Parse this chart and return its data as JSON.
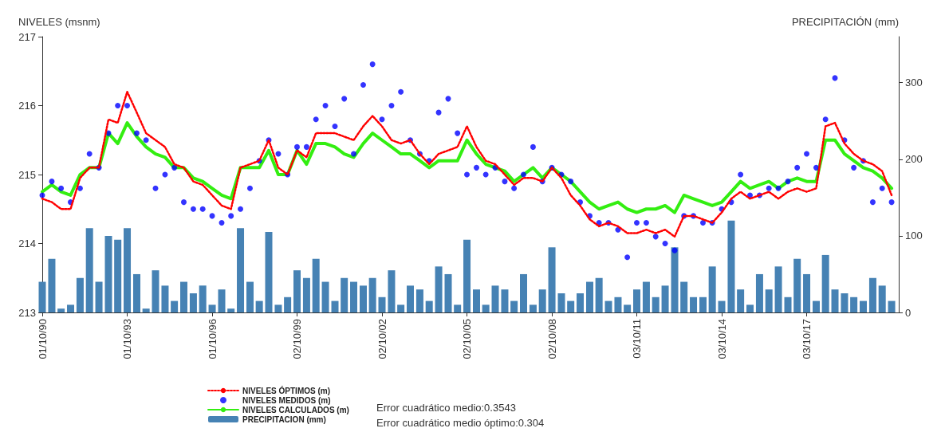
{
  "chart_data": {
    "type": "line",
    "ylabel": "NIVELES (msnm)",
    "y2label": "PRECIPITACIÓN (mm)",
    "x": [
      "1990-10",
      "1991-02",
      "1991-06",
      "1991-10",
      "1992-02",
      "1992-06",
      "1992-10",
      "1993-02",
      "1993-06",
      "1993-10",
      "1994-02",
      "1994-06",
      "1994-10",
      "1995-02",
      "1995-06",
      "1995-10",
      "1996-02",
      "1996-06",
      "1996-10",
      "1997-02",
      "1997-06",
      "1997-10",
      "1998-02",
      "1998-06",
      "1998-10",
      "1999-02",
      "1999-06",
      "1999-10",
      "2000-02",
      "2000-06",
      "2000-10",
      "2001-02",
      "2001-06",
      "2001-10",
      "2002-02",
      "2002-06",
      "2002-10",
      "2003-02",
      "2003-06",
      "2003-10",
      "2004-02",
      "2004-06",
      "2004-10",
      "2005-02",
      "2005-06",
      "2005-10",
      "2006-02",
      "2006-06",
      "2006-10",
      "2007-02",
      "2007-06",
      "2007-10",
      "2008-02",
      "2008-06",
      "2008-10",
      "2009-02",
      "2009-06",
      "2009-10",
      "2010-02",
      "2010-06",
      "2010-10",
      "2011-02",
      "2011-06",
      "2011-10",
      "2012-02",
      "2012-06",
      "2012-10",
      "2013-02",
      "2013-06",
      "2013-10",
      "2014-02",
      "2014-06",
      "2014-10",
      "2015-02",
      "2015-06",
      "2015-10",
      "2016-02",
      "2016-06",
      "2016-10",
      "2017-02",
      "2017-06",
      "2017-10",
      "2018-02",
      "2018-06",
      "2018-10",
      "2019-02",
      "2019-06",
      "2019-10",
      "2020-02",
      "2020-06",
      "2020-10"
    ],
    "xlim": [
      "1990-10-01",
      "2021-01-01"
    ],
    "xticks": [
      {
        "value": "1990-10-01",
        "label": "01/10/90"
      },
      {
        "value": "1993-10-01",
        "label": "01/10/93"
      },
      {
        "value": "1996-10-01",
        "label": "01/10/96"
      },
      {
        "value": "1999-10-02",
        "label": "02/10/99"
      },
      {
        "value": "2002-10-02",
        "label": "02/10/02"
      },
      {
        "value": "2005-10-02",
        "label": "02/10/05"
      },
      {
        "value": "2008-10-02",
        "label": "02/10/08"
      },
      {
        "value": "2011-10-03",
        "label": "03/10/11"
      },
      {
        "value": "2014-10-03",
        "label": "03/10/14"
      },
      {
        "value": "2017-10-03",
        "label": "03/10/17"
      }
    ],
    "ylim": [
      213,
      217
    ],
    "yticks": [
      213,
      214,
      215,
      216,
      217
    ],
    "y2lim": [
      0,
      360
    ],
    "y2ticks": [
      0,
      100,
      200,
      300
    ],
    "legend": "bottom",
    "grid": false,
    "annotations": [
      "Error cuadrático medio:0.3543",
      "Error cuadrático medio óptimo:0.304"
    ],
    "series": [
      {
        "name": "NIVELES ÓPTIMOS (m)",
        "color": "#ff0000",
        "line_style": "dotted",
        "marker": "none",
        "values": [
          214.65,
          214.6,
          214.5,
          214.5,
          214.95,
          215.1,
          215.1,
          215.8,
          215.75,
          216.2,
          215.9,
          215.6,
          215.5,
          215.4,
          215.15,
          215.1,
          214.9,
          214.85,
          214.7,
          214.55,
          214.5,
          215.1,
          215.15,
          215.2,
          215.5,
          215.1,
          215.0,
          215.35,
          215.25,
          215.6,
          215.6,
          215.6,
          215.55,
          215.5,
          215.7,
          215.85,
          215.7,
          215.5,
          215.45,
          215.5,
          215.3,
          215.15,
          215.3,
          215.35,
          215.4,
          215.7,
          215.4,
          215.2,
          215.15,
          215.0,
          214.85,
          214.95,
          214.95,
          214.9,
          215.1,
          214.95,
          214.7,
          214.55,
          214.35,
          214.25,
          214.3,
          214.25,
          214.15,
          214.15,
          214.2,
          214.15,
          214.2,
          214.1,
          214.4,
          214.4,
          214.35,
          214.3,
          214.45,
          214.65,
          214.75,
          214.65,
          214.7,
          214.75,
          214.65,
          214.75,
          214.8,
          214.75,
          214.8,
          215.7,
          215.75,
          215.45,
          215.3,
          215.2,
          215.15,
          215.05,
          214.7
        ]
      },
      {
        "name": "NIVELES MEDIDOS (m)",
        "type": "scatter",
        "color": "#0000ff",
        "marker": "circle",
        "values": [
          214.7,
          214.9,
          214.8,
          214.6,
          214.8,
          215.3,
          215.1,
          215.6,
          216.0,
          216.0,
          215.6,
          215.5,
          214.8,
          215.0,
          215.1,
          214.6,
          214.5,
          214.5,
          214.4,
          214.3,
          214.4,
          214.5,
          214.8,
          215.2,
          215.5,
          215.3,
          215.0,
          215.4,
          215.4,
          215.8,
          216.0,
          215.7,
          216.1,
          215.3,
          216.3,
          216.6,
          215.8,
          216.0,
          216.2,
          215.5,
          215.3,
          215.2,
          215.9,
          216.1,
          215.6,
          215.0,
          215.1,
          215.0,
          215.1,
          214.9,
          214.8,
          215.0,
          215.4,
          214.9,
          215.1,
          215.0,
          214.9,
          214.6,
          214.4,
          214.3,
          214.3,
          214.2,
          213.8,
          214.3,
          214.3,
          214.1,
          214.0,
          213.9,
          214.4,
          214.4,
          214.3,
          214.3,
          214.5,
          214.6,
          215.0,
          214.7,
          214.7,
          214.8,
          214.8,
          214.9,
          215.1,
          215.3,
          215.1,
          215.8,
          216.4,
          215.5,
          215.1,
          215.2,
          214.6,
          214.8,
          214.6
        ]
      },
      {
        "name": "NIVELES CALCULADOS (m)",
        "color": "#33ee11",
        "line_style": "solid",
        "marker": "none",
        "values": [
          214.75,
          214.85,
          214.75,
          214.7,
          215.0,
          215.1,
          215.1,
          215.6,
          215.45,
          215.75,
          215.55,
          215.4,
          215.3,
          215.25,
          215.1,
          215.1,
          214.95,
          214.9,
          214.8,
          214.7,
          214.65,
          215.1,
          215.1,
          215.1,
          215.35,
          215.0,
          215.0,
          215.35,
          215.15,
          215.45,
          215.45,
          215.4,
          215.3,
          215.25,
          215.45,
          215.6,
          215.5,
          215.4,
          215.3,
          215.3,
          215.2,
          215.1,
          215.2,
          215.2,
          215.2,
          215.5,
          215.3,
          215.15,
          215.1,
          215.05,
          214.9,
          215.0,
          215.1,
          214.95,
          215.1,
          215.0,
          214.9,
          214.75,
          214.6,
          214.5,
          214.55,
          214.6,
          214.5,
          214.45,
          214.5,
          214.5,
          214.55,
          214.45,
          214.7,
          214.65,
          214.6,
          214.55,
          214.6,
          214.75,
          214.9,
          214.8,
          214.85,
          214.9,
          214.8,
          214.9,
          214.95,
          214.9,
          214.9,
          215.5,
          215.5,
          215.3,
          215.2,
          215.1,
          215.05,
          214.95,
          214.8
        ]
      },
      {
        "name": "PRECIPITACION (mm)",
        "type": "bar",
        "axis": "y2",
        "color": "#4682b4",
        "values": [
          40,
          70,
          5,
          10,
          45,
          110,
          40,
          100,
          95,
          110,
          50,
          5,
          55,
          35,
          15,
          40,
          25,
          35,
          10,
          30,
          5,
          110,
          40,
          15,
          105,
          10,
          20,
          55,
          45,
          70,
          40,
          15,
          45,
          40,
          35,
          45,
          20,
          55,
          10,
          35,
          30,
          15,
          60,
          50,
          10,
          95,
          30,
          10,
          35,
          30,
          15,
          50,
          10,
          30,
          85,
          25,
          15,
          25,
          40,
          45,
          15,
          20,
          10,
          30,
          40,
          20,
          35,
          85,
          40,
          20,
          20,
          60,
          15,
          120,
          30,
          10,
          50,
          30,
          60,
          20,
          70,
          50,
          15,
          75,
          30,
          25,
          20,
          15,
          45,
          35,
          15
        ]
      }
    ]
  }
}
